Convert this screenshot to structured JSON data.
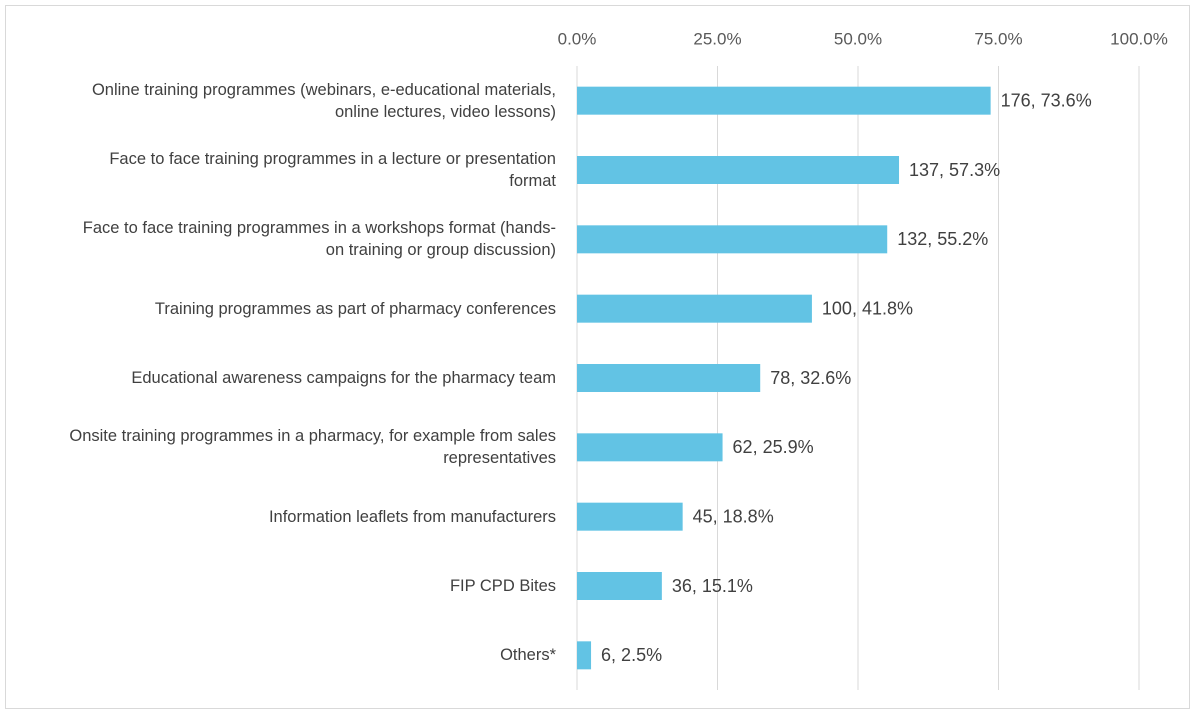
{
  "chart_data": {
    "type": "bar",
    "orientation": "horizontal",
    "categories": [
      "Online training programmes (webinars, e-educational materials, online lectures, video lessons)",
      "Face to face training programmes in a lecture or presentation format",
      "Face to face training programmes in a workshops format (hands-on training or group discussion)",
      "Training programmes as part of pharmacy conferences",
      "Educational awareness campaigns for the pharmacy team",
      "Onsite training programmes in a pharmacy, for example from sales representatives",
      "Information leaflets from manufacturers",
      "FIP CPD Bites",
      "Others*"
    ],
    "values": [
      73.6,
      57.3,
      55.2,
      41.8,
      32.6,
      25.9,
      18.8,
      15.1,
      2.5
    ],
    "value_labels": [
      "176, 73.6%",
      "137, 57.3%",
      "132, 55.2%",
      "100, 41.8%",
      "78, 32.6%",
      "62, 25.9%",
      "45, 18.8%",
      "36, 15.1%",
      "6, 2.5%"
    ],
    "color": "#62c3e4",
    "xlim": [
      0,
      100
    ],
    "xticks": [
      {
        "value": 0,
        "label": "0.0%"
      },
      {
        "value": 25,
        "label": "25.0%"
      },
      {
        "value": 50,
        "label": "50.0%"
      },
      {
        "value": 75,
        "label": "75.0%"
      },
      {
        "value": 100,
        "label": "100.0%"
      }
    ],
    "grid": true
  }
}
